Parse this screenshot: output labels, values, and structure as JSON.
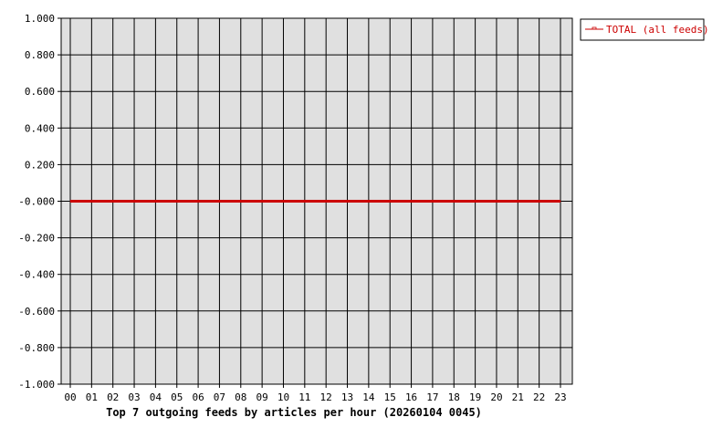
{
  "chart_data": {
    "type": "line",
    "title": "Top 7 outgoing feeds by articles per hour (20260104 0045)",
    "x": [
      "00",
      "01",
      "02",
      "03",
      "04",
      "05",
      "06",
      "07",
      "08",
      "09",
      "10",
      "11",
      "12",
      "13",
      "14",
      "15",
      "16",
      "17",
      "18",
      "19",
      "20",
      "21",
      "22",
      "23"
    ],
    "y_ticks": [
      "1.000",
      "0.800",
      "0.600",
      "0.400",
      "0.200",
      "-0.000",
      "-0.200",
      "-0.400",
      "-0.600",
      "-0.800",
      "-1.000"
    ],
    "ylim": [
      -1,
      1
    ],
    "grid": true,
    "legend_position": "right",
    "series": [
      {
        "name": "TOTAL (all feeds)",
        "color": "#cc0000",
        "values": [
          0,
          0,
          0,
          0,
          0,
          0,
          0,
          0,
          0,
          0,
          0,
          0,
          0,
          0,
          0,
          0,
          0,
          0,
          0,
          0,
          0,
          0,
          0,
          0
        ]
      }
    ],
    "colors": {
      "plot_bg": "#e0e0e0",
      "grid": "#000000"
    }
  }
}
